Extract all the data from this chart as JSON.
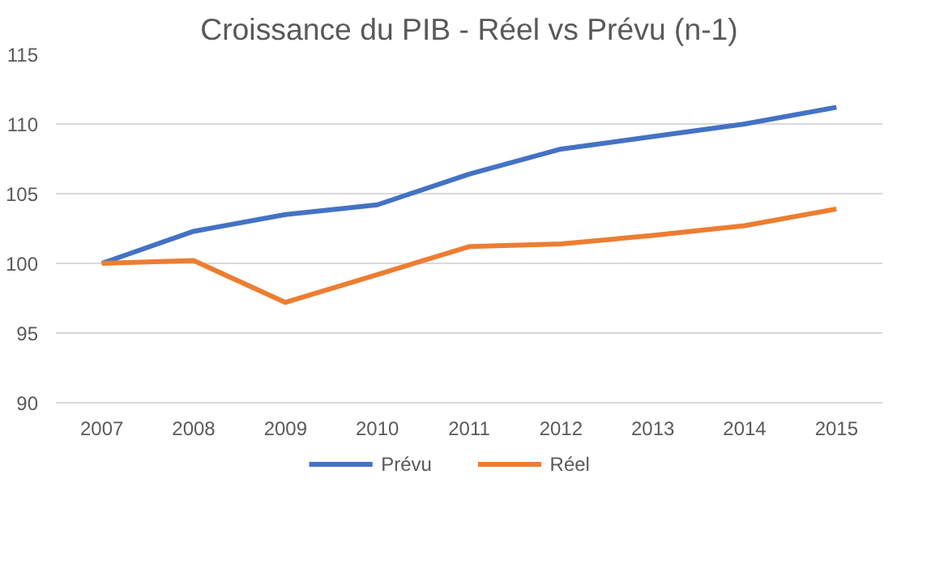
{
  "chart_data": {
    "type": "line",
    "title": "Croissance du PIB - Réel vs Prévu (n-1)",
    "categories": [
      "2007",
      "2008",
      "2009",
      "2010",
      "2011",
      "2012",
      "2013",
      "2014",
      "2015"
    ],
    "series": [
      {
        "name": "Prévu",
        "color": "#4472c4",
        "values": [
          100,
          102.3,
          103.5,
          104.2,
          106.4,
          108.2,
          109.1,
          110.0,
          111.2
        ]
      },
      {
        "name": "Réel",
        "color": "#ed7d31",
        "values": [
          100,
          100.2,
          97.2,
          99.2,
          101.2,
          101.4,
          102.0,
          102.7,
          103.9
        ]
      }
    ],
    "ylim": [
      90,
      115
    ],
    "yticks": [
      90,
      95,
      100,
      105,
      110,
      115
    ],
    "grid": "y",
    "legend": "bottom",
    "line_style": "solid",
    "marker": "none"
  }
}
